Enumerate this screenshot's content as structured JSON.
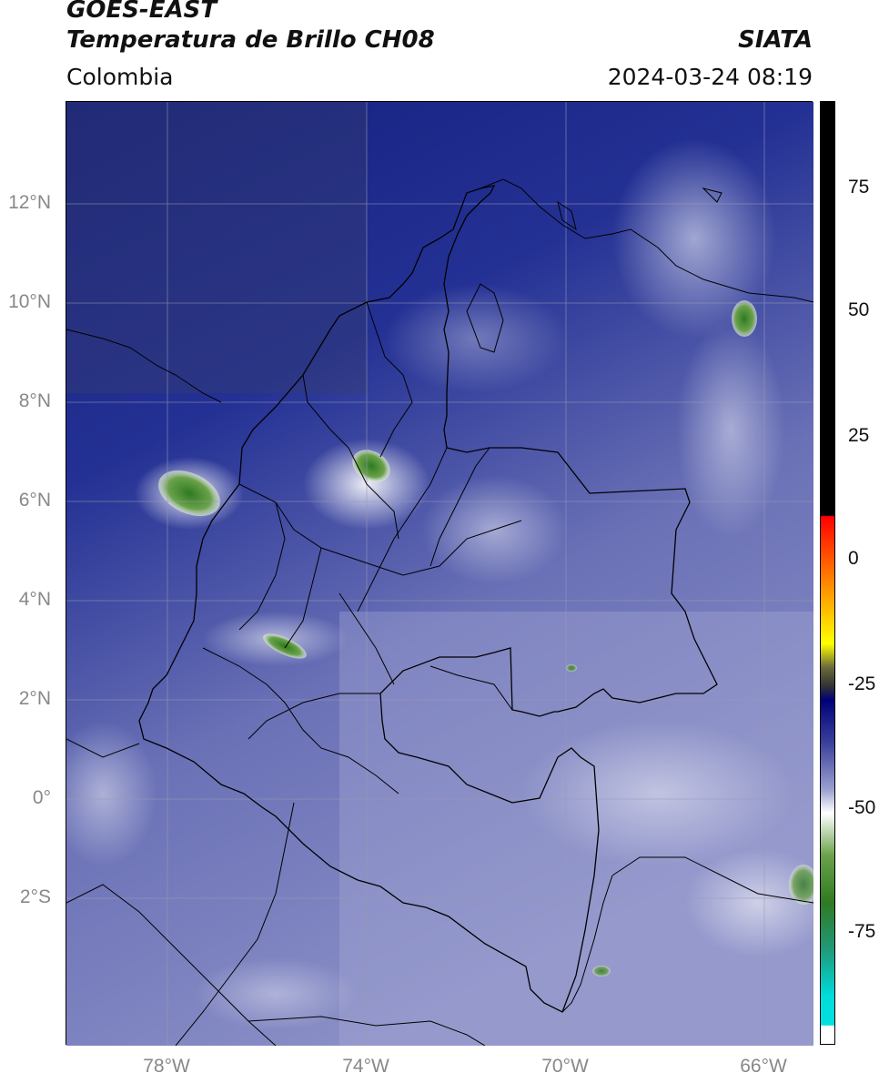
{
  "header": {
    "satellite": "GOES-EAST",
    "product": "Temperatura de Brillo CH08",
    "region": "Colombia",
    "agency": "SIATA",
    "datetime": "2024-03-24 08:19"
  },
  "map": {
    "latitude_labels": [
      "12°N",
      "10°N",
      "8°N",
      "6°N",
      "4°N",
      "2°N",
      "0°",
      "2°S"
    ],
    "longitude_labels": [
      "78°W",
      "74°W",
      "70°W",
      "66°W"
    ],
    "gridlines": true,
    "colors": {
      "dark_blue": "#101a7a",
      "mid_blue": "#4a55a8",
      "light": "#c9cbe6",
      "cold_green": "#3f8a2e",
      "border": "#000000"
    }
  },
  "colorbar": {
    "tick_labels": [
      "75",
      "50",
      "25",
      "0",
      "-25",
      "-50",
      "-75"
    ],
    "colors": [
      "#000000",
      "#ff0000",
      "#ffaa00",
      "#ffff00",
      "#6b6b3a",
      "#333333",
      "#00007a",
      "#9aa0cf",
      "#ffffff",
      "#3c7e22",
      "#00c8c8",
      "#ffffff"
    ]
  }
}
